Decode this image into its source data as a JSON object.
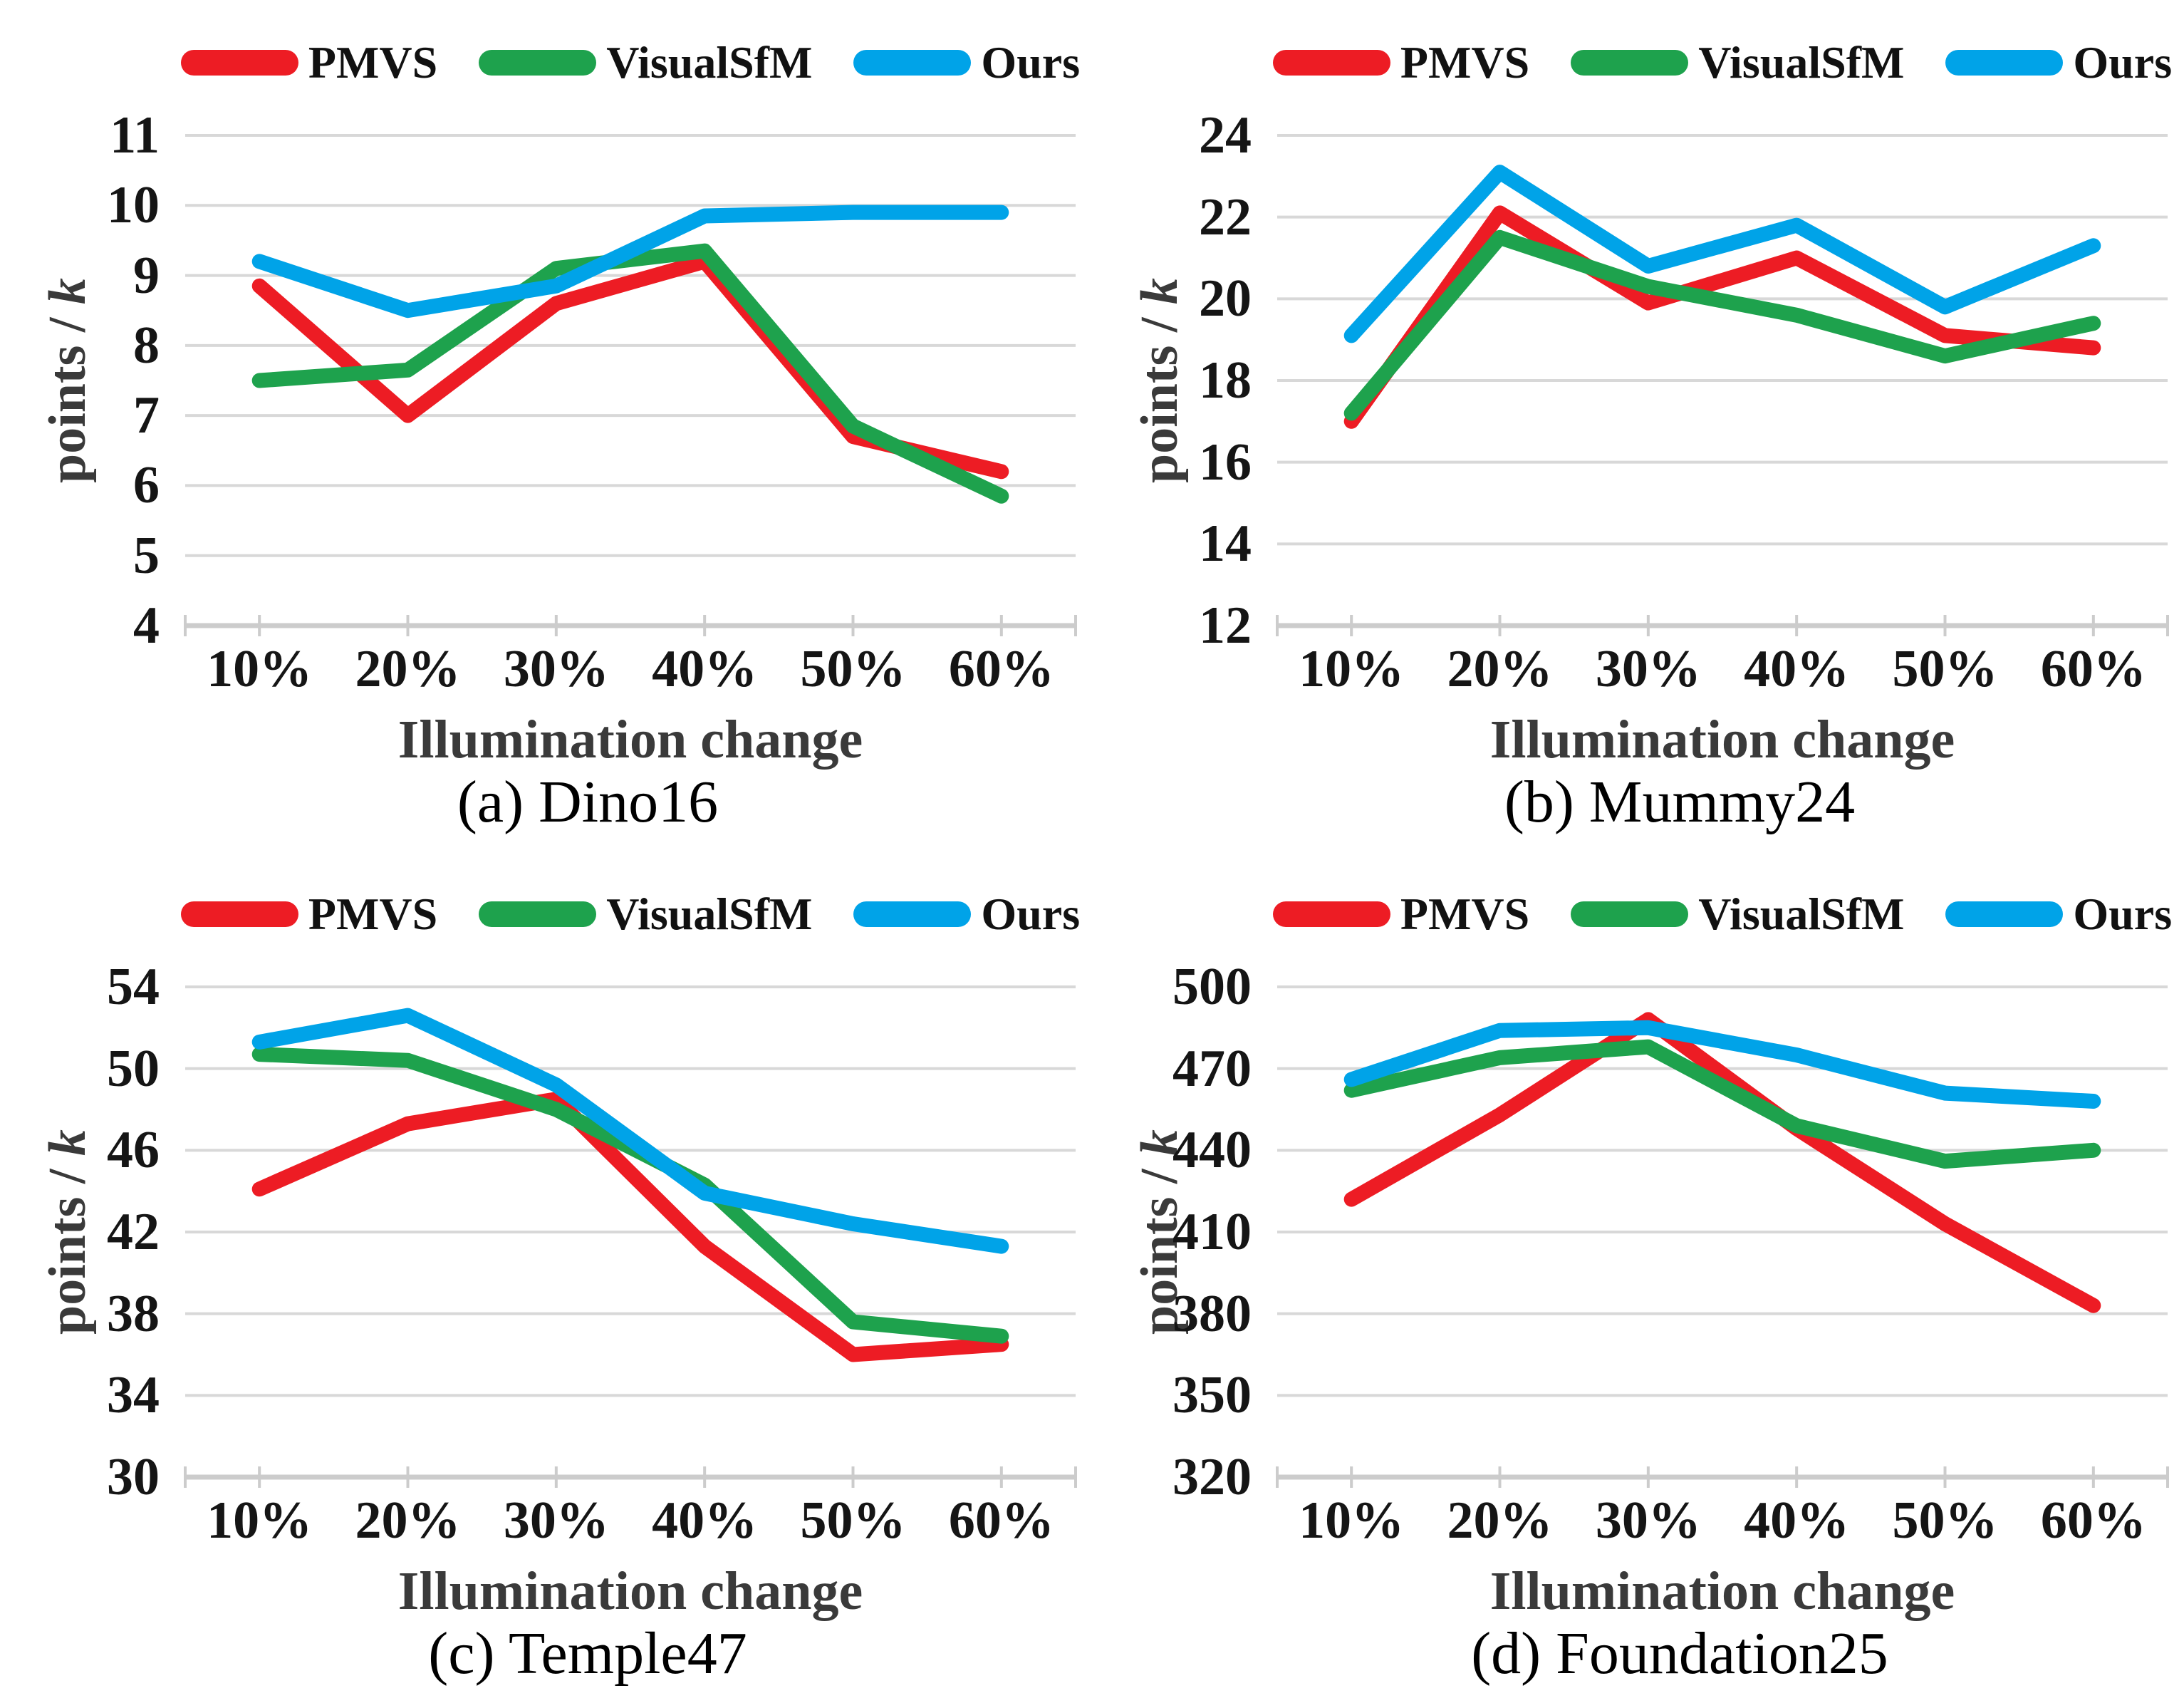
{
  "figure": {
    "xlabel": "Illumination change",
    "ylabel": "points / k",
    "ylabel_prefix": "points / ",
    "ylabel_italic": "k",
    "legend_entries": [
      "PMVS",
      "VisualSfM",
      "Ours"
    ],
    "legend_position": "top"
  },
  "series_colors": {
    "PMVS": "#ED1C24",
    "VisualSfM": "#1EA24D",
    "Ours": "#00A3E8"
  },
  "theme": {
    "background": "#FFFFFF",
    "grid": "#D8D8D8",
    "axis": "#CCCCCC",
    "tick_text": "#151515",
    "title_text": "#3A3A3A",
    "line_width": 21
  },
  "chart_data": [
    {
      "type": "line",
      "caption": "(a) Dino16",
      "xlabel": "Illumination change",
      "ylabel": "points / k",
      "grid": "horizontal",
      "legend_position": "top",
      "categories": [
        "10%",
        "20%",
        "30%",
        "40%",
        "50%",
        "60%"
      ],
      "ylim": [
        4,
        11
      ],
      "yticks": [
        4,
        5,
        6,
        7,
        8,
        9,
        10,
        11
      ],
      "series": [
        {
          "name": "PMVS",
          "values": [
            8.85,
            7.0,
            8.6,
            9.2,
            6.7,
            6.2
          ]
        },
        {
          "name": "VisualSfM",
          "values": [
            7.5,
            7.65,
            9.1,
            9.35,
            6.85,
            5.85
          ]
        },
        {
          "name": "Ours",
          "values": [
            9.2,
            8.5,
            8.85,
            9.85,
            9.9,
            9.9
          ]
        }
      ]
    },
    {
      "type": "line",
      "caption": "(b) Mummy24",
      "xlabel": "Illumination change",
      "ylabel": "points / k",
      "grid": "horizontal",
      "legend_position": "top",
      "categories": [
        "10%",
        "20%",
        "30%",
        "40%",
        "50%",
        "60%"
      ],
      "ylim": [
        12,
        24
      ],
      "yticks": [
        12,
        14,
        16,
        18,
        20,
        22,
        24
      ],
      "series": [
        {
          "name": "PMVS",
          "values": [
            17.0,
            22.1,
            19.9,
            21.0,
            19.1,
            18.8
          ]
        },
        {
          "name": "VisualSfM",
          "values": [
            17.2,
            21.5,
            20.3,
            19.6,
            18.6,
            19.4
          ]
        },
        {
          "name": "Ours",
          "values": [
            19.1,
            23.1,
            20.8,
            21.8,
            19.8,
            21.3
          ]
        }
      ]
    },
    {
      "type": "line",
      "caption": "(c) Temple47",
      "xlabel": "Illumination change",
      "ylabel": "points / k",
      "grid": "horizontal",
      "legend_position": "top",
      "categories": [
        "10%",
        "20%",
        "30%",
        "40%",
        "50%",
        "60%"
      ],
      "ylim": [
        30,
        54
      ],
      "yticks": [
        30,
        34,
        38,
        42,
        46,
        50,
        54
      ],
      "series": [
        {
          "name": "PMVS",
          "values": [
            44.1,
            47.3,
            48.5,
            41.3,
            36.0,
            36.5
          ]
        },
        {
          "name": "VisualSfM",
          "values": [
            50.7,
            50.4,
            48.0,
            44.3,
            37.6,
            36.9
          ]
        },
        {
          "name": "Ours",
          "values": [
            51.3,
            52.6,
            49.2,
            43.9,
            42.4,
            41.3
          ]
        }
      ]
    },
    {
      "type": "line",
      "caption": "(d) Foundation25",
      "xlabel": "Illumination change",
      "ylabel": "points / k",
      "grid": "horizontal",
      "legend_position": "top",
      "categories": [
        "10%",
        "20%",
        "30%",
        "40%",
        "50%",
        "60%"
      ],
      "ylim": [
        320,
        500
      ],
      "yticks": [
        320,
        350,
        380,
        410,
        440,
        470,
        500
      ],
      "series": [
        {
          "name": "PMVS",
          "values": [
            422,
            453,
            488,
            448,
            413,
            383
          ]
        },
        {
          "name": "VisualSfM",
          "values": [
            462,
            474,
            478,
            449,
            436,
            440
          ]
        },
        {
          "name": "Ours",
          "values": [
            466,
            484,
            485,
            475,
            461,
            458
          ]
        }
      ]
    }
  ]
}
